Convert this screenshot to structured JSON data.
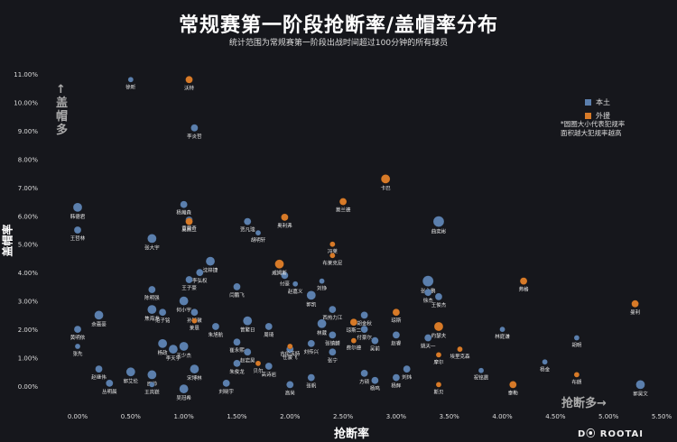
{
  "title": "常规赛第一阶段抢断率/盖帽率分布",
  "subtitle": "统计范围为常规赛第一阶段出战时间超过100分钟的所有球员",
  "note_lines": [
    "*圆圈大小代表犯规率",
    "面积越大犯规率越高"
  ],
  "axis_hint_y": "↑盖帽多",
  "axis_hint_x": "抢断多→",
  "logo": "D⦿ ROOTAI",
  "colors": {
    "domestic": "#5b7fad",
    "foreign": "#d77a28",
    "background": "#16171c",
    "text": "#ffffff"
  },
  "chart_data": {
    "type": "scatter",
    "title": "常规赛第一阶段抢断率/盖帽率分布",
    "xlabel": "抢断率",
    "ylabel": "盖帽率",
    "xlim": [
      0,
      0.055
    ],
    "ylim": [
      0,
      0.11
    ],
    "x_ticks": [
      "0.00%",
      "0.50%",
      "1.00%",
      "1.50%",
      "2.00%",
      "2.50%",
      "3.00%",
      "3.50%",
      "4.00%",
      "4.50%",
      "5.00%",
      "5.50%"
    ],
    "y_ticks": [
      "0.00%",
      "1.00%",
      "2.00%",
      "3.00%",
      "4.00%",
      "5.00%",
      "6.00%",
      "7.00%",
      "8.00%",
      "9.00%",
      "10.00%",
      "11.00%"
    ],
    "legend": [
      "本土",
      "外援"
    ],
    "legend_position": "top-right",
    "size_encodes": "犯规率",
    "series": [
      {
        "name": "本土",
        "points": [
          {
            "label": "徐昕",
            "x": 0.005,
            "y": 0.108,
            "size": 3
          },
          {
            "label": "李炎哲",
            "x": 0.011,
            "y": 0.091,
            "size": 4
          },
          {
            "label": "韩德君",
            "x": 0.0,
            "y": 0.063,
            "size": 5
          },
          {
            "label": "杨瀚森",
            "x": 0.01,
            "y": 0.064,
            "size": 4
          },
          {
            "label": "黄荣奇",
            "x": 0.0105,
            "y": 0.0585,
            "size": 4
          },
          {
            "label": "贾凡瑞",
            "x": 0.016,
            "y": 0.058,
            "size": 4
          },
          {
            "label": "胡明轩",
            "x": 0.017,
            "y": 0.054,
            "size": 3
          },
          {
            "label": "曲奕彬",
            "x": 0.034,
            "y": 0.058,
            "size": 6
          },
          {
            "label": "王哲林",
            "x": 0.0,
            "y": 0.055,
            "size": 4
          },
          {
            "label": "张大宇",
            "x": 0.007,
            "y": 0.052,
            "size": 5
          },
          {
            "label": "沈梓捷",
            "x": 0.0125,
            "y": 0.044,
            "size": 5
          },
          {
            "label": "李弘权",
            "x": 0.0115,
            "y": 0.04,
            "size": 4
          },
          {
            "label": "王子豪",
            "x": 0.0105,
            "y": 0.0375,
            "size": 4
          },
          {
            "label": "付豪",
            "x": 0.0195,
            "y": 0.039,
            "size": 4
          },
          {
            "label": "赵嘉义",
            "x": 0.0205,
            "y": 0.036,
            "size": 3
          },
          {
            "label": "刘铮",
            "x": 0.023,
            "y": 0.037,
            "size": 3
          },
          {
            "label": "闫鹏飞",
            "x": 0.015,
            "y": 0.035,
            "size": 4
          },
          {
            "label": "郭凯",
            "x": 0.022,
            "y": 0.032,
            "size": 5
          },
          {
            "label": "张永鹏",
            "x": 0.033,
            "y": 0.037,
            "size": 6
          },
          {
            "label": "徐杰",
            "x": 0.033,
            "y": 0.033,
            "size": 4
          },
          {
            "label": "王俊杰",
            "x": 0.034,
            "y": 0.0315,
            "size": 4
          },
          {
            "label": "陈明强",
            "x": 0.007,
            "y": 0.034,
            "size": 4
          },
          {
            "label": "何小宇",
            "x": 0.01,
            "y": 0.03,
            "size": 5
          },
          {
            "label": "焦海龙",
            "x": 0.007,
            "y": 0.027,
            "size": 5
          },
          {
            "label": "范子铭",
            "x": 0.008,
            "y": 0.026,
            "size": 4
          },
          {
            "label": "余嘉豪",
            "x": 0.002,
            "y": 0.025,
            "size": 5
          },
          {
            "label": "孙铭徽",
            "x": 0.011,
            "y": 0.026,
            "size": 4
          },
          {
            "label": "朱旭航",
            "x": 0.013,
            "y": 0.021,
            "size": 4
          },
          {
            "label": "西热力江",
            "x": 0.024,
            "y": 0.027,
            "size": 4
          },
          {
            "label": "胡金秋",
            "x": 0.027,
            "y": 0.025,
            "size": 4
          },
          {
            "label": "曾繁日",
            "x": 0.016,
            "y": 0.023,
            "size": 5
          },
          {
            "label": "周琦",
            "x": 0.018,
            "y": 0.021,
            "size": 4
          },
          {
            "label": "林葳",
            "x": 0.023,
            "y": 0.022,
            "size": 5
          },
          {
            "label": "付豪尔",
            "x": 0.027,
            "y": 0.02,
            "size": 4
          },
          {
            "label": "赵睿",
            "x": 0.03,
            "y": 0.018,
            "size": 4
          },
          {
            "label": "姚天一",
            "x": 0.033,
            "y": 0.017,
            "size": 4
          },
          {
            "label": "吴前",
            "x": 0.028,
            "y": 0.016,
            "size": 4
          },
          {
            "label": "张镇麟",
            "x": 0.024,
            "y": 0.018,
            "size": 4
          },
          {
            "label": "刘传兴",
            "x": 0.022,
            "y": 0.015,
            "size": 4
          },
          {
            "label": "林庭谦",
            "x": 0.04,
            "y": 0.02,
            "size": 3
          },
          {
            "label": "胡明",
            "x": 0.047,
            "y": 0.017,
            "size": 3
          },
          {
            "label": "黄明依",
            "x": 0.0,
            "y": 0.02,
            "size": 4
          },
          {
            "label": "张先",
            "x": 0.0,
            "y": 0.014,
            "size": 3
          },
          {
            "label": "杨政",
            "x": 0.008,
            "y": 0.015,
            "size": 5
          },
          {
            "label": "李天宇",
            "x": 0.009,
            "y": 0.013,
            "size": 5
          },
          {
            "label": "王少杰",
            "x": 0.01,
            "y": 0.014,
            "size": 5
          },
          {
            "label": "崔永熙",
            "x": 0.015,
            "y": 0.0155,
            "size": 4
          },
          {
            "label": "赵岩昊",
            "x": 0.016,
            "y": 0.012,
            "size": 4
          },
          {
            "label": "任骏飞",
            "x": 0.02,
            "y": 0.013,
            "size": 4
          },
          {
            "label": "张宁",
            "x": 0.024,
            "y": 0.012,
            "size": 4
          },
          {
            "label": "赵继伟",
            "x": 0.002,
            "y": 0.006,
            "size": 4
          },
          {
            "label": "郭艾伦",
            "x": 0.005,
            "y": 0.005,
            "size": 5
          },
          {
            "label": "原帅",
            "x": 0.007,
            "y": 0.004,
            "size": 5
          },
          {
            "label": "宋博林",
            "x": 0.011,
            "y": 0.006,
            "size": 5
          },
          {
            "label": "朱俊龙",
            "x": 0.015,
            "y": 0.008,
            "size": 4
          },
          {
            "label": "高诗岩",
            "x": 0.018,
            "y": 0.007,
            "size": 4
          },
          {
            "label": "方硕",
            "x": 0.027,
            "y": 0.0045,
            "size": 4
          },
          {
            "label": "杨鸣",
            "x": 0.028,
            "y": 0.002,
            "size": 4
          },
          {
            "label": "刘炜",
            "x": 0.031,
            "y": 0.006,
            "size": 4
          },
          {
            "label": "杨辉",
            "x": 0.03,
            "y": 0.003,
            "size": 4
          },
          {
            "label": "刘晓宇",
            "x": 0.014,
            "y": 0.001,
            "size": 4
          },
          {
            "label": "高尚",
            "x": 0.02,
            "y": 0.0005,
            "size": 4
          },
          {
            "label": "吴冠希",
            "x": 0.01,
            "y": -0.001,
            "size": 5
          },
          {
            "label": "丛明晨",
            "x": 0.003,
            "y": 0.001,
            "size": 4
          },
          {
            "label": "王岚嵚",
            "x": 0.007,
            "y": 0.0005,
            "size": 3
          },
          {
            "label": "张帆",
            "x": 0.022,
            "y": 0.003,
            "size": 4
          },
          {
            "label": "祝铭震",
            "x": 0.038,
            "y": 0.0055,
            "size": 3
          },
          {
            "label": "杨金",
            "x": 0.044,
            "y": 0.0085,
            "size": 3
          },
          {
            "label": "郭昊文",
            "x": 0.053,
            "y": 0.0005,
            "size": 5
          }
        ]
      },
      {
        "name": "外援",
        "points": [
          {
            "label": "沃特",
            "x": 0.0105,
            "y": 0.108,
            "size": 4
          },
          {
            "label": "卡巴",
            "x": 0.029,
            "y": 0.073,
            "size": 5
          },
          {
            "label": "莫兰德",
            "x": 0.025,
            "y": 0.065,
            "size": 4
          },
          {
            "label": "吴前二",
            "x": 0.0105,
            "y": 0.058,
            "size": 4
          },
          {
            "label": "奥利弗",
            "x": 0.0195,
            "y": 0.0595,
            "size": 4
          },
          {
            "label": "冯莱",
            "x": 0.024,
            "y": 0.05,
            "size": 3
          },
          {
            "label": "布莱克尼",
            "x": 0.024,
            "y": 0.046,
            "size": 3
          },
          {
            "label": "威姆斯",
            "x": 0.019,
            "y": 0.043,
            "size": 5
          },
          {
            "label": "弗格",
            "x": 0.042,
            "y": 0.037,
            "size": 4
          },
          {
            "label": "曼利",
            "x": 0.0525,
            "y": 0.029,
            "size": 4
          },
          {
            "label": "琼斯",
            "x": 0.03,
            "y": 0.026,
            "size": 4
          },
          {
            "label": "约瑟夫",
            "x": 0.034,
            "y": 0.021,
            "size": 5
          },
          {
            "label": "琼斯二",
            "x": 0.026,
            "y": 0.0225,
            "size": 4
          },
          {
            "label": "费尔德",
            "x": 0.026,
            "y": 0.016,
            "size": 3
          },
          {
            "label": "吉伦沃特",
            "x": 0.02,
            "y": 0.014,
            "size": 3
          },
          {
            "label": "埃里克森",
            "x": 0.036,
            "y": 0.013,
            "size": 3
          },
          {
            "label": "摩尔",
            "x": 0.034,
            "y": 0.011,
            "size": 3
          },
          {
            "label": "布朗",
            "x": 0.047,
            "y": 0.004,
            "size": 3
          },
          {
            "label": "泰勒",
            "x": 0.041,
            "y": 0.0005,
            "size": 4
          },
          {
            "label": "贝尔",
            "x": 0.017,
            "y": 0.008,
            "size": 3
          },
          {
            "label": "莱恩",
            "x": 0.011,
            "y": 0.023,
            "size": 3
          },
          {
            "label": "斯贝",
            "x": 0.034,
            "y": 0.0005,
            "size": 3
          }
        ]
      }
    ]
  }
}
